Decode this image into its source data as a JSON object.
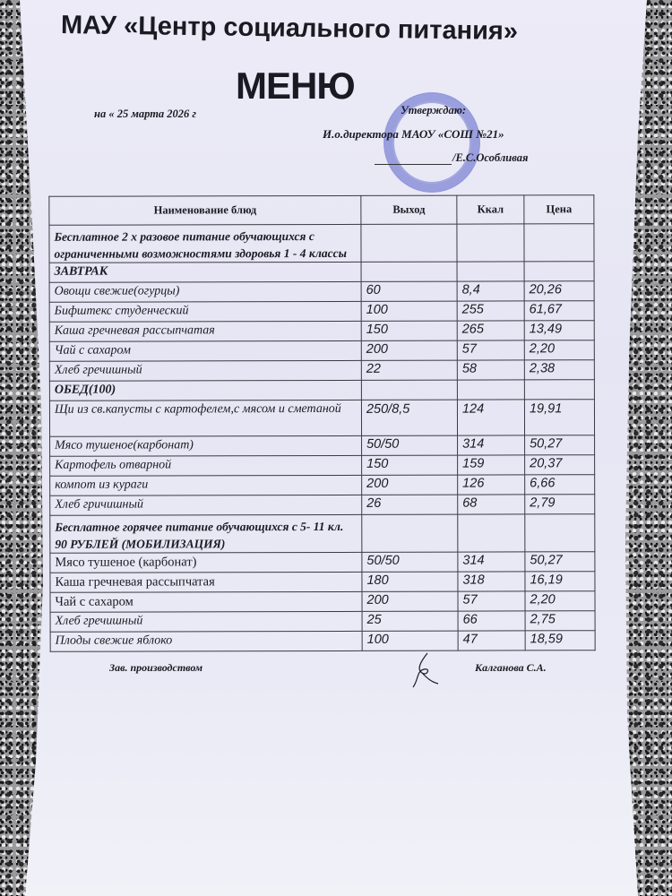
{
  "header": {
    "organization": "МАУ «Центр социального питания»",
    "title": "МЕНЮ",
    "date": "на « 25  марта 2026 г",
    "approval": {
      "label": "Утверждаю:",
      "position": "И.о.директора  МАОУ «СОШ №21»",
      "name": "/Е.С.Особливая"
    }
  },
  "table": {
    "columns": [
      "Наименование блюд",
      "Выход",
      "Ккал",
      "Цена"
    ],
    "rows": [
      {
        "kind": "group",
        "name": "Бесплатное 2 х разовое питание обучающихся  с ограниченными возможностями здоровья 1 - 4 классы",
        "out": "",
        "kcal": "",
        "price": ""
      },
      {
        "kind": "section",
        "name": "ЗАВТРАК",
        "out": "",
        "kcal": "",
        "price": ""
      },
      {
        "kind": "item",
        "name": "Овощи свежие(огурцы)",
        "out": "60",
        "kcal": "8,4",
        "price": "20,26"
      },
      {
        "kind": "item",
        "name": "Бифштекс студенческий",
        "out": "100",
        "kcal": "255",
        "price": "61,67"
      },
      {
        "kind": "item",
        "name": "Каша гречневая рассыпчатая",
        "out": "150",
        "kcal": "265",
        "price": "13,49"
      },
      {
        "kind": "item",
        "name": "Чай с сахаром",
        "out": "200",
        "kcal": "57",
        "price": "2,20"
      },
      {
        "kind": "item",
        "name": "Хлеб гречишный",
        "out": "22",
        "kcal": "58",
        "price": "2,38"
      },
      {
        "kind": "section",
        "name": "ОБЕД(100)",
        "out": "",
        "kcal": "",
        "price": ""
      },
      {
        "kind": "item",
        "name": "Щи из св.капусты с картофелем,с мясом и сметаной",
        "out": "250/8,5",
        "kcal": "124",
        "price": "19,91"
      },
      {
        "kind": "item",
        "name": "Мясо тушеное(карбонат)",
        "out": "50/50",
        "kcal": "314",
        "price": "50,27"
      },
      {
        "kind": "item",
        "name": "Картофель отварной",
        "out": "150",
        "kcal": "159",
        "price": "20,37"
      },
      {
        "kind": "item",
        "name": "компот из кураги",
        "out": "200",
        "kcal": "126",
        "price": "6,66"
      },
      {
        "kind": "item",
        "name": "Хлеб гричишный",
        "out": "26",
        "kcal": "68",
        "price": "2,79"
      },
      {
        "kind": "group",
        "name": "Бесплатное горячее питание обучающихся с 5- 11 кл. 90 РУБЛЕЙ (МОБИЛИЗАЦИЯ)",
        "out": "",
        "kcal": "",
        "price": ""
      },
      {
        "kind": "item",
        "name": "Мясо тушеное (карбонат)",
        "out": "50/50",
        "kcal": "314",
        "price": "50,27"
      },
      {
        "kind": "item",
        "name": "Каша гречневая рассыпчатая",
        "out": "180",
        "kcal": "318",
        "price": "16,19"
      },
      {
        "kind": "item",
        "name": "Чай с сахаром",
        "out": "200",
        "kcal": "57",
        "price": "2,20"
      },
      {
        "kind": "item",
        "name": "Хлеб гречишный",
        "out": "25",
        "kcal": "66",
        "price": "2,75"
      },
      {
        "kind": "item",
        "name": "Плоды свежие яблоко",
        "out": "100",
        "kcal": "47",
        "price": "18,59"
      }
    ]
  },
  "footer": {
    "position": "Зав. производством",
    "name": "Калганова С.А."
  },
  "colors": {
    "stamp": "#5a64c8",
    "paper": "#e9e8f5",
    "ink": "#1a1a22"
  }
}
